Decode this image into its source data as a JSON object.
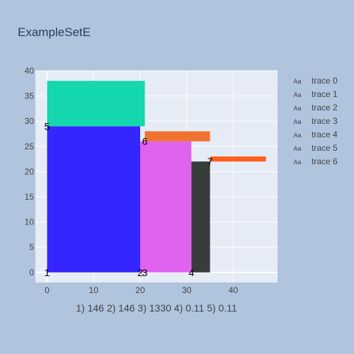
{
  "colors": {
    "paper": "#b0c4de",
    "plot_bg": "#e5ecf6",
    "grid": "#ffffff",
    "text": "#444444",
    "title": "#2a3f5f"
  },
  "chart_data": {
    "type": "bar",
    "title": "ExampleSetE",
    "xlabel": "1) 146 2) 146 3) 1330 4) 0.11 5) 0.11",
    "ylabel": "",
    "xlim": [
      -2.5,
      49.5
    ],
    "ylim": [
      -2,
      40
    ],
    "x_ticks": [
      0,
      10,
      20,
      30,
      40
    ],
    "y_ticks": [
      0,
      5,
      10,
      15,
      20,
      25,
      30,
      35,
      40
    ],
    "grid": true,
    "legend_placement": "top-right",
    "legend_symbol": "Aa",
    "series": [
      {
        "name": "trace 0",
        "color": "#3526ff",
        "x0": 0,
        "x1": 20,
        "y0": 0,
        "y1": 29
      },
      {
        "name": "trace 1",
        "color": "#14d7ae",
        "x0": 0,
        "x1": 21,
        "y0": 29,
        "y1": 38
      },
      {
        "name": "trace 2",
        "color": "#e063f0",
        "x0": 20,
        "x1": 31,
        "y0": 0,
        "y1": 26
      },
      {
        "name": "trace 3",
        "color": "#f07230",
        "x0": 21,
        "x1": 35,
        "y0": 26,
        "y1": 28
      },
      {
        "name": "trace 4",
        "color": "#383c3a",
        "x0": 31,
        "x1": 35,
        "y0": 0,
        "y1": 22
      },
      {
        "name": "trace 5",
        "color": "#ff5f1f",
        "x0": 35,
        "x1": 47,
        "y0": 22,
        "y1": 23
      },
      {
        "name": "trace 6",
        "color": "#ffffff",
        "x0": 35,
        "x1": 35,
        "y0": 22,
        "y1": 22
      }
    ],
    "point_labels": [
      {
        "text": "1",
        "x": 0,
        "y": 0
      },
      {
        "text": "5",
        "x": 0,
        "y": 29
      },
      {
        "text": "2",
        "x": 20,
        "y": 0
      },
      {
        "text": "3",
        "x": 21,
        "y": 0
      },
      {
        "text": "6",
        "x": 21,
        "y": 26
      },
      {
        "text": "4",
        "x": 31,
        "y": 0
      },
      {
        "text": "7",
        "x": 35,
        "y": 22
      }
    ]
  }
}
